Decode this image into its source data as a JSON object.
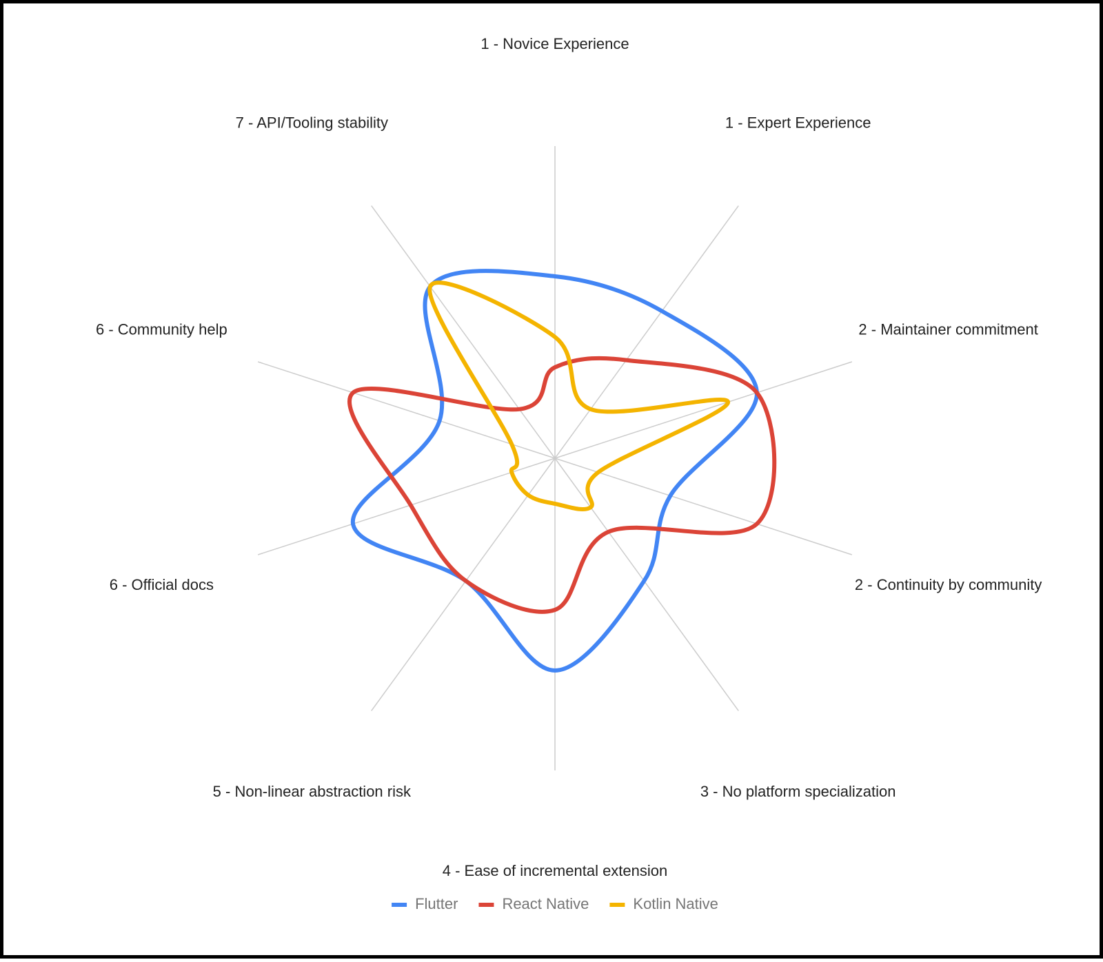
{
  "chart_data": {
    "type": "radar",
    "axes": [
      "1 - Novice Experience",
      "1 - Expert Experience",
      "2 - Maintainer commitment",
      "2 - Continuity by community",
      "3 - No platform specialization",
      "4 - Ease of incremental extension",
      "5 - Non-linear abstraction risk",
      "6 - Official docs",
      "6 - Community help",
      "7 - API/Tooling stability"
    ],
    "series": [
      {
        "name": "Flutter",
        "color": "#4285F4",
        "values": [
          6,
          6,
          7,
          4,
          5,
          7,
          5,
          7,
          4,
          7
        ]
      },
      {
        "name": "React Native",
        "color": "#DB4437",
        "values": [
          3,
          4,
          7,
          7,
          3,
          5,
          5,
          5,
          7,
          2
        ]
      },
      {
        "name": "Kotlin Native",
        "color": "#F4B400",
        "values": [
          4,
          2,
          6,
          1.5,
          2,
          1.5,
          1.5,
          1.5,
          1.5,
          7
        ]
      }
    ],
    "rlim": [
      0,
      10
    ],
    "grid": true,
    "legend_position": "bottom",
    "curve": "smooth"
  }
}
